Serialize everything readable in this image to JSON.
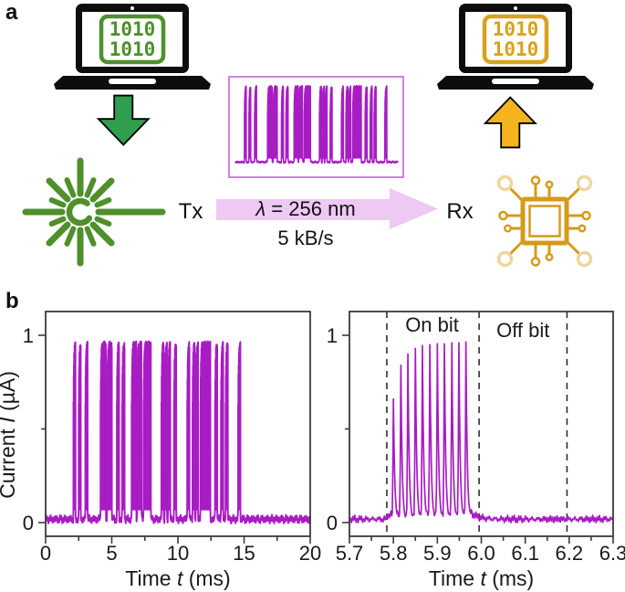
{
  "panel_a": {
    "label": "a",
    "laptop_left": {
      "line1": "1010",
      "line2": "1010"
    },
    "laptop_right": {
      "line1": "1010",
      "line2": "1010"
    },
    "tx_label": "Tx",
    "rx_label": "Rx",
    "beam_label": {
      "symbol": "λ",
      "rest": " = 256 nm"
    },
    "beam_rate": "5 kB/s"
  },
  "panel_b": {
    "label": "b"
  },
  "colors": {
    "trace": "#a81cc4",
    "green": "#4f8f2c",
    "arrow_green": "#2f9e4e",
    "gold": "#d8a21d",
    "arrow_gold": "#f5b41d",
    "chip_gold": "#d49a1a",
    "chip_pale": "#ecd6a0",
    "beam_fill": "#edc9f3",
    "inset_border": "#c265d6",
    "axis": "#3a3a3a"
  },
  "chart_data": [
    {
      "type": "line",
      "title": "",
      "xlabel_parts": {
        "pre": "Time ",
        "sym": "t",
        "post": " (ms)"
      },
      "ylabel_parts": {
        "pre": "Current ",
        "sym": "I",
        "post": " (µA)"
      },
      "xlim": [
        0,
        20
      ],
      "ylim": [
        -0.07,
        1.13
      ],
      "xticks": [
        0,
        5,
        10,
        15,
        20
      ],
      "xminor": [
        2.5,
        7.5,
        12.5,
        17.5
      ],
      "yticks": [
        0,
        1
      ],
      "yminor": [
        0.5
      ],
      "tick_decimals": 0,
      "grid": false,
      "baseline": 0.018,
      "spike_peak": 0.95,
      "bit_width_ms": 0.2,
      "on_intervals": [
        [
          2.1,
          2.25
        ],
        [
          2.5,
          2.65
        ],
        [
          3.0,
          3.17
        ],
        [
          4.15,
          4.55
        ],
        [
          4.65,
          5.0
        ],
        [
          5.38,
          5.55
        ],
        [
          5.78,
          5.97
        ],
        [
          6.5,
          6.85
        ],
        [
          6.92,
          7.25
        ],
        [
          7.4,
          7.95
        ],
        [
          8.75,
          8.92
        ],
        [
          9.0,
          9.17
        ],
        [
          9.25,
          9.42
        ],
        [
          9.7,
          9.87
        ],
        [
          10.7,
          10.87
        ],
        [
          11.1,
          11.27
        ],
        [
          11.35,
          11.52
        ],
        [
          11.7,
          12.45
        ],
        [
          12.8,
          12.97
        ],
        [
          13.25,
          13.42
        ],
        [
          13.6,
          13.77
        ],
        [
          14.55,
          14.72
        ]
      ]
    },
    {
      "type": "line",
      "title": "",
      "xlabel_parts": {
        "pre": "Time ",
        "sym": "t",
        "post": " (ms)"
      },
      "xlim": [
        5.7,
        6.3
      ],
      "ylim": [
        -0.07,
        1.13
      ],
      "xticks": [
        5.7,
        5.8,
        5.9,
        6.0,
        6.1,
        6.2,
        6.3
      ],
      "xminor": [
        5.75,
        5.85,
        5.95,
        6.05,
        6.15,
        6.25
      ],
      "yticks": [
        0,
        1
      ],
      "yminor": [
        0.5
      ],
      "tick_decimals": 1,
      "grid": false,
      "baseline": 0.018,
      "dashed_lines": [
        5.785,
        5.995,
        6.195
      ],
      "annotations": [
        {
          "text": "On bit",
          "x": 5.888,
          "y": 1.02
        },
        {
          "text": "Off bit",
          "x": 6.095,
          "y": 0.99
        }
      ],
      "spikes": [
        {
          "t": 5.8,
          "peak": 0.66
        },
        {
          "t": 5.817,
          "peak": 0.84
        },
        {
          "t": 5.833,
          "peak": 0.9
        },
        {
          "t": 5.85,
          "peak": 0.93
        },
        {
          "t": 5.866,
          "peak": 0.945
        },
        {
          "t": 5.883,
          "peak": 0.95
        },
        {
          "t": 5.9,
          "peak": 0.955
        },
        {
          "t": 5.916,
          "peak": 0.955
        },
        {
          "t": 5.933,
          "peak": 0.96
        },
        {
          "t": 5.949,
          "peak": 0.96
        },
        {
          "t": 5.965,
          "peak": 0.965
        }
      ]
    }
  ]
}
